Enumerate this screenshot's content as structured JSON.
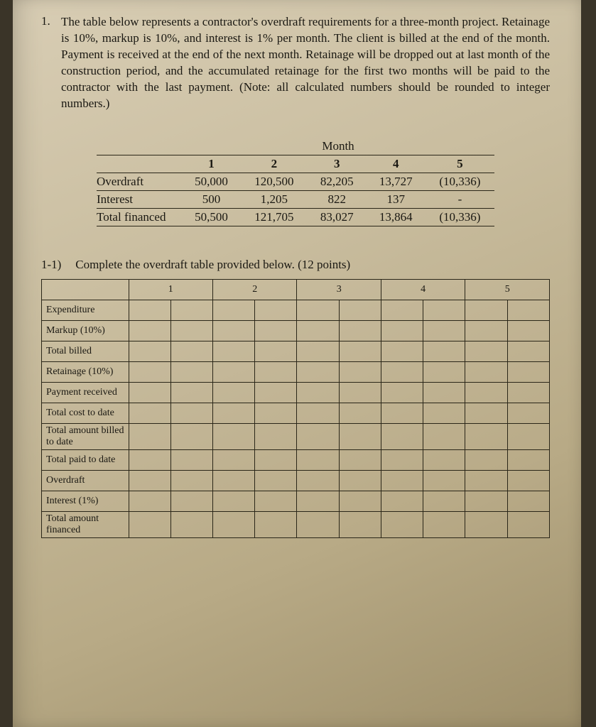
{
  "question": {
    "number": "1.",
    "text": "The table below represents a contractor's overdraft requirements for a three-month project. Retainage is 10%, markup is 10%, and interest is 1% per month. The client is billed at the end of the month. Payment is received at the end of the next month. Retainage will be dropped out at last month of the construction period, and the accumulated retainage for the first two months will be paid to the contractor with the last payment. (Note: all calculated numbers should be rounded to integer numbers.)"
  },
  "summary_table": {
    "supertitle": "Month",
    "months": [
      "1",
      "2",
      "3",
      "4",
      "5"
    ],
    "rows": [
      {
        "label": "Overdraft",
        "values": [
          "50,000",
          "120,500",
          "82,205",
          "13,727",
          "(10,336)"
        ]
      },
      {
        "label": "Interest",
        "values": [
          "500",
          "1,205",
          "822",
          "137",
          "-"
        ]
      },
      {
        "label": "Total financed",
        "values": [
          "50,500",
          "121,705",
          "83,027",
          "13,864",
          "(10,336)"
        ]
      }
    ]
  },
  "subquestion": {
    "tag": "1-1)",
    "text": "Complete the overdraft table provided below. (12 points)"
  },
  "blank_table": {
    "columns": [
      "1",
      "2",
      "3",
      "4",
      "5"
    ],
    "row_labels": [
      "Expenditure",
      "Markup (10%)",
      "Total billed",
      "Retainage (10%)",
      "Payment received",
      "Total cost to date",
      "Total amount billed to date",
      "Total paid to date",
      "Overdraft",
      "Interest (1%)",
      "Total amount financed"
    ]
  }
}
